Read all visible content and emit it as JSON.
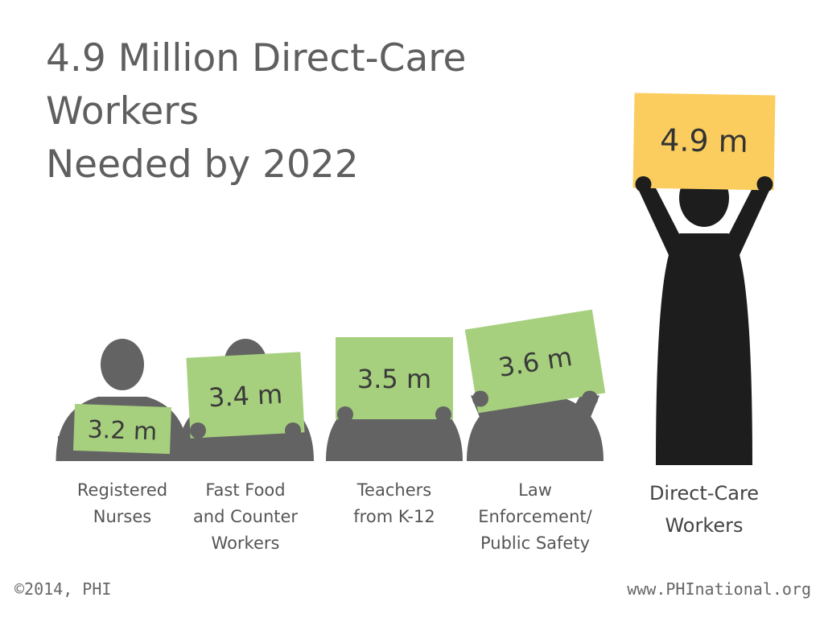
{
  "title": {
    "line1": "4.9 Million Direct-Care Workers",
    "line2": "Needed by 2022"
  },
  "footer": {
    "copyright": "©2014, PHI",
    "website": "www.PHInational.org"
  },
  "colors": {
    "title": "#5f5f5f",
    "sign_default": "#a6d07e",
    "sign_highlight": "#fbcd5e",
    "silhouette_default": "#636363",
    "silhouette_highlight": "#1d1d1d"
  },
  "chart_data": {
    "type": "bar",
    "title": "4.9 Million Direct-Care Workers Needed by 2022",
    "unit": "m",
    "categories": [
      "Registered Nurses",
      "Fast Food and Counter Workers",
      "Teachers from K-12",
      "Law Enforcement/ Public Safety",
      "Direct-Care Workers"
    ],
    "values": [
      3.2,
      3.4,
      3.5,
      3.6,
      4.9
    ],
    "sign_labels": [
      "3.2 m",
      "3.4 m",
      "3.5 m",
      "3.6 m",
      "4.9 m"
    ],
    "category_lines": [
      [
        "Registered",
        "Nurses"
      ],
      [
        "Fast Food",
        "and Counter",
        "Workers"
      ],
      [
        "Teachers",
        "from K-12"
      ],
      [
        "Law",
        "Enforcement/",
        "Public Safety"
      ],
      [
        "Direct-Care",
        "Workers"
      ]
    ],
    "highlight_index": 4
  }
}
